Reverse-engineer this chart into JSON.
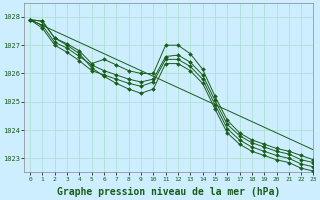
{
  "background_color": "#cceeff",
  "plot_bg_color": "#cceeff",
  "grid_color": "#aaddcc",
  "line_color": "#1a5c1a",
  "marker_color": "#1a5c1a",
  "xlabel": "Graphe pression niveau de la mer (hPa)",
  "xlabel_fontsize": 7,
  "xlim": [
    -0.5,
    23
  ],
  "ylim": [
    1022.5,
    1028.5
  ],
  "yticks": [
    1023,
    1024,
    1025,
    1026,
    1027,
    1028
  ],
  "xticks": [
    0,
    1,
    2,
    3,
    4,
    5,
    6,
    7,
    8,
    9,
    10,
    11,
    12,
    13,
    14,
    15,
    16,
    17,
    18,
    19,
    20,
    21,
    22,
    23
  ],
  "series": [
    [
      1027.9,
      1027.85,
      1027.25,
      1027.05,
      1026.8,
      1026.35,
      1026.5,
      1026.3,
      1026.1,
      1026.0,
      1026.0,
      1027.0,
      1027.0,
      1026.7,
      1026.15,
      1025.2,
      1024.35,
      1023.9,
      1023.65,
      1023.5,
      1023.35,
      1023.25,
      1023.1,
      1022.95
    ],
    [
      1027.9,
      1027.7,
      1027.1,
      1026.9,
      1026.6,
      1026.3,
      1026.1,
      1025.95,
      1025.8,
      1025.7,
      1025.8,
      1026.6,
      1026.65,
      1026.4,
      1025.95,
      1025.05,
      1024.2,
      1023.8,
      1023.55,
      1023.4,
      1023.25,
      1023.15,
      1022.95,
      1022.85
    ],
    [
      1027.9,
      1027.6,
      1027.0,
      1026.75,
      1026.45,
      1026.1,
      1025.95,
      1025.8,
      1025.65,
      1025.55,
      1025.7,
      1026.5,
      1026.5,
      1026.25,
      1025.8,
      1024.9,
      1024.05,
      1023.65,
      1023.4,
      1023.25,
      1023.1,
      1023.0,
      1022.8,
      1022.7
    ],
    [
      1027.9,
      1027.85,
      1027.25,
      1027.0,
      1026.7,
      1026.2,
      1025.9,
      1025.65,
      1025.45,
      1025.3,
      1025.45,
      1026.35,
      1026.35,
      1026.1,
      1025.65,
      1024.75,
      1023.9,
      1023.5,
      1023.25,
      1023.1,
      1022.95,
      1022.85,
      1022.65,
      1022.55
    ]
  ],
  "line_straight": [
    1027.9,
    1027.7,
    1027.5,
    1027.3,
    1027.1,
    1026.9,
    1026.7,
    1026.5,
    1026.3,
    1026.1,
    1025.9,
    1025.7,
    1025.5,
    1025.3,
    1025.1,
    1024.9,
    1024.7,
    1024.5,
    1024.3,
    1024.1,
    1023.9,
    1023.7,
    1023.5,
    1023.3
  ]
}
